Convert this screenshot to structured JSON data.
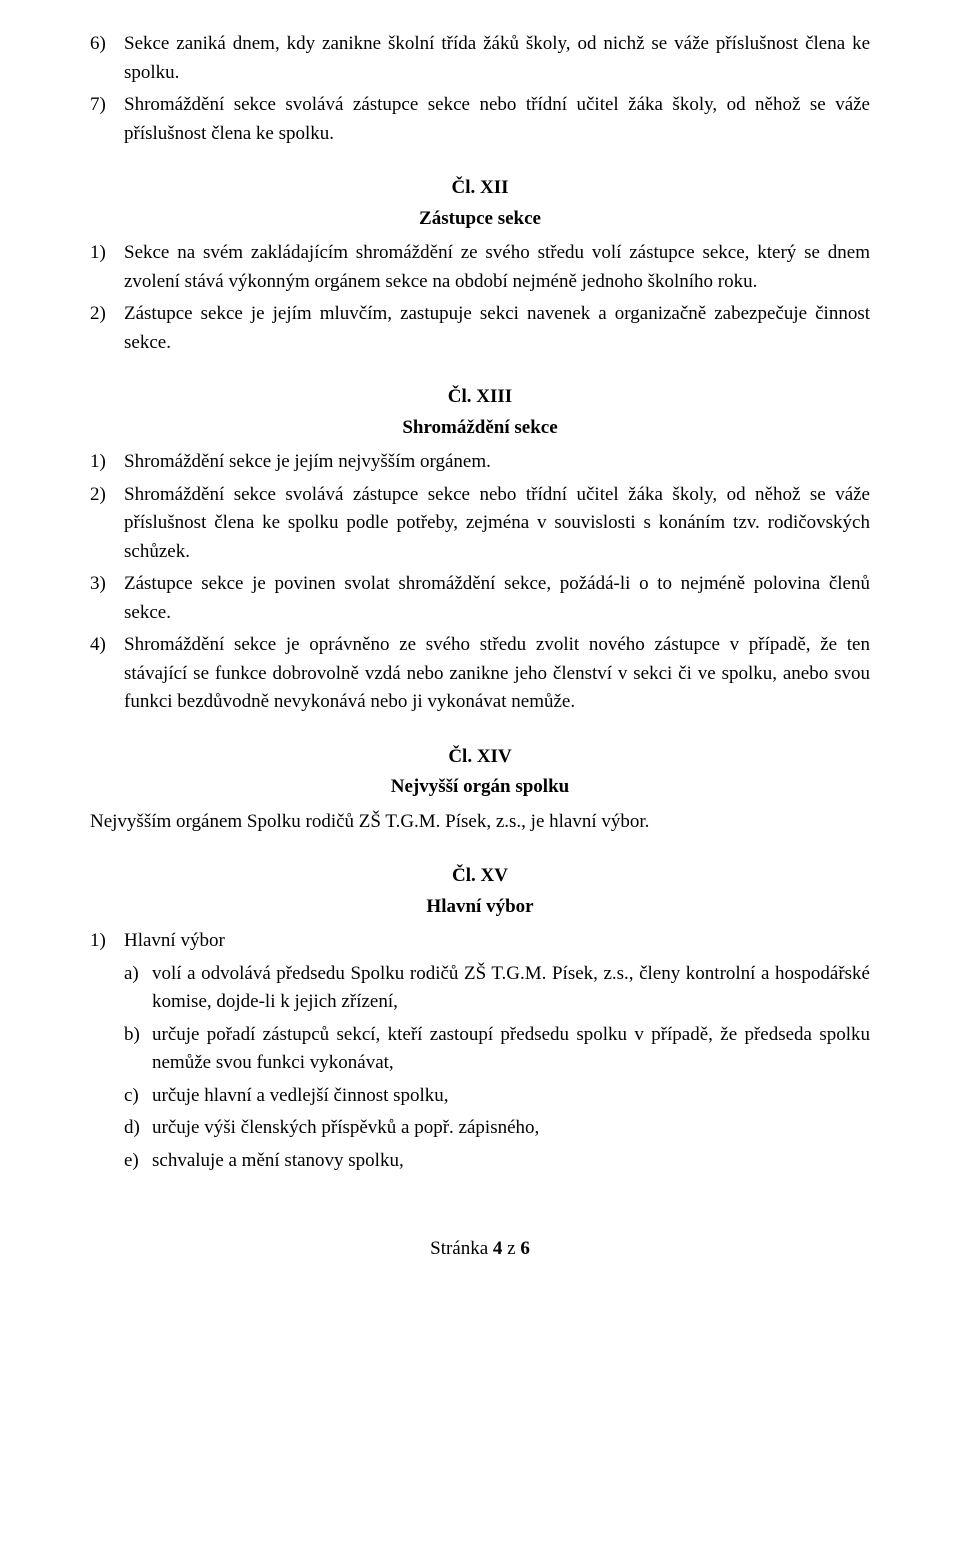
{
  "p6": {
    "num": "6)",
    "text": "Sekce zaniká dnem, kdy zanikne školní třída žáků školy, od nichž se váže příslušnost člena ke spolku."
  },
  "p7": {
    "num": "7)",
    "text": "Shromáždění sekce svolává zástupce sekce nebo třídní učitel žáka školy, od něhož se váže příslušnost člena ke spolku."
  },
  "art12": {
    "heading": "Čl. XII",
    "title": "Zástupce sekce",
    "i1": {
      "num": "1)",
      "text": "Sekce na svém zakládajícím shromáždění ze svého středu volí zástupce sekce, který se dnem zvolení stává výkonným orgánem sekce na období nejméně jednoho školního roku."
    },
    "i2": {
      "num": "2)",
      "text": "Zástupce sekce je jejím mluvčím, zastupuje sekci navenek a organizačně zabezpečuje činnost sekce."
    }
  },
  "art13": {
    "heading": "Čl. XIII",
    "title": "Shromáždění sekce",
    "i1": {
      "num": "1)",
      "text": "Shromáždění sekce je jejím nejvyšším orgánem."
    },
    "i2": {
      "num": "2)",
      "text": "Shromáždění sekce svolává zástupce sekce nebo třídní učitel žáka školy, od něhož se váže příslušnost člena ke spolku podle potřeby, zejména v souvislosti s konáním tzv. rodičovských schůzek."
    },
    "i3": {
      "num": "3)",
      "text": "Zástupce sekce je povinen svolat shromáždění sekce, požádá-li o to nejméně polovina členů sekce."
    },
    "i4": {
      "num": "4)",
      "text": "Shromáždění sekce je oprávněno ze svého středu zvolit nového zástupce v případě, že ten stávající se funkce dobrovolně vzdá nebo zanikne jeho členství v sekci či ve spolku, anebo svou funkci bezdůvodně nevykonává nebo ji vykonávat nemůže."
    }
  },
  "art14": {
    "heading": "Čl. XIV",
    "title": "Nejvyšší orgán spolku",
    "body": "Nejvyšším orgánem Spolku rodičů ZŠ T.G.M. Písek, z.s., je hlavní výbor."
  },
  "art15": {
    "heading": "Čl. XV",
    "title": "Hlavní výbor",
    "i1": {
      "num": "1)",
      "text": "Hlavní výbor"
    },
    "a": {
      "let": "a)",
      "text": "volí a odvolává předsedu Spolku rodičů ZŠ T.G.M. Písek, z.s., členy kontrolní a hospodářské komise, dojde-li k jejich zřízení,"
    },
    "b": {
      "let": "b)",
      "text": "určuje pořadí zástupců sekcí, kteří zastoupí předsedu spolku v případě, že předseda spolku nemůže svou funkci vykonávat,"
    },
    "c": {
      "let": "c)",
      "text": "určuje hlavní a vedlejší činnost spolku,"
    },
    "d": {
      "let": "d)",
      "text": "určuje výši členských příspěvků a popř. zápisného,"
    },
    "e": {
      "let": "e)",
      "text": "schvaluje a mění stanovy spolku,"
    }
  },
  "footer": {
    "prefix": "Stránka ",
    "page": "4",
    "mid": " z ",
    "total": "6"
  }
}
